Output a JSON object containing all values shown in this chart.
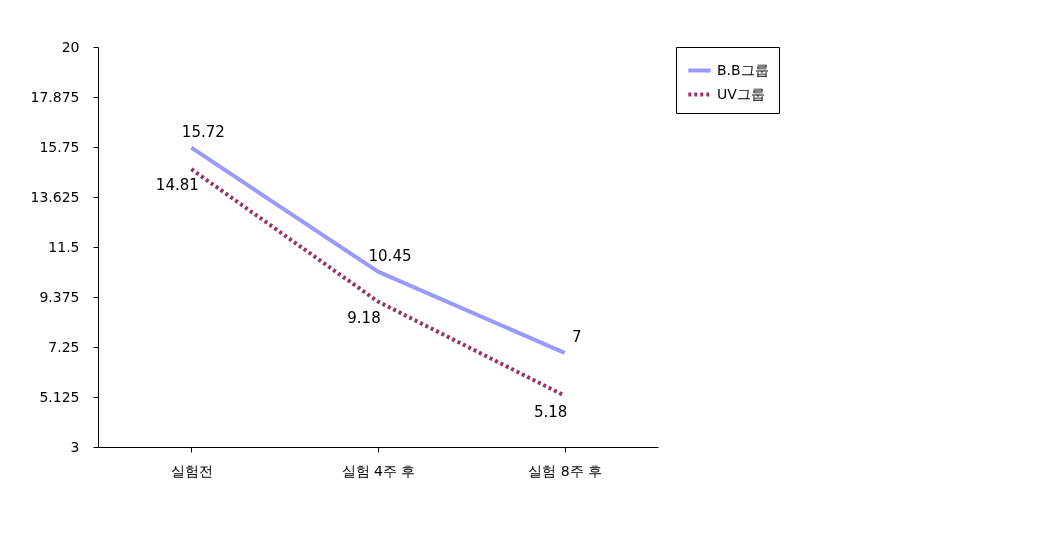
{
  "chart_data": {
    "type": "line",
    "categories": [
      "실험전",
      "실험 4주 후",
      "실험 8주 후"
    ],
    "series": [
      {
        "name": "B.B그룹",
        "color": "#9999ff",
        "line_style": "solid",
        "values": [
          15.72,
          10.45,
          7
        ]
      },
      {
        "name": "UV그룹",
        "color": "#993366",
        "line_style": "dotted",
        "values": [
          14.81,
          9.18,
          5.18
        ]
      }
    ],
    "ylim": [
      3,
      20
    ],
    "yticks": [
      3,
      5.125,
      7.25,
      9.375,
      11.5,
      13.625,
      15.75,
      17.875,
      20
    ],
    "data_labels": true,
    "grid": false,
    "legend": "right",
    "marker": "none"
  }
}
